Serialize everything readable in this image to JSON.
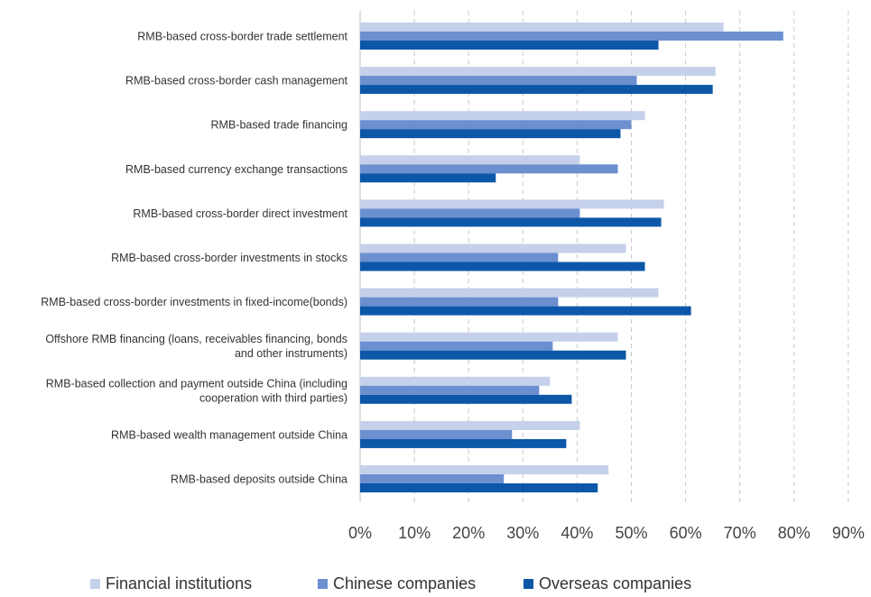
{
  "chart_data": {
    "type": "bar",
    "orientation": "horizontal",
    "categories": [
      "RMB-based cross-border trade settlement",
      "RMB-based cross-border cash management",
      "RMB-based trade financing",
      "RMB-based currency exchange transactions",
      "RMB-based cross-border direct investment",
      "RMB-based cross-border investments in stocks",
      "RMB-based cross-border investments in fixed-income(bonds)",
      "Offshore RMB financing (loans, receivables financing, bonds and other instruments)",
      "RMB-based collection and payment outside China (including cooperation with third parties)",
      "RMB-based wealth management outside China",
      "RMB-based deposits outside China"
    ],
    "category_lines": [
      [
        "RMB-based cross-border trade settlement"
      ],
      [
        "RMB-based cross-border cash management"
      ],
      [
        "RMB-based trade financing"
      ],
      [
        "RMB-based currency exchange transactions"
      ],
      [
        "RMB-based cross-border direct investment"
      ],
      [
        "RMB-based cross-border investments in stocks"
      ],
      [
        "RMB-based cross-border investments in fixed-income(bonds)"
      ],
      [
        "Offshore RMB financing (loans, receivables financing, bonds",
        "and other instruments)"
      ],
      [
        "RMB-based collection and payment outside China (including",
        "cooperation with third parties)"
      ],
      [
        "RMB-based wealth management outside China"
      ],
      [
        "RMB-based deposits outside China"
      ]
    ],
    "series": [
      {
        "name": "Financial institutions",
        "color": "#c5d0ea",
        "values": [
          67,
          65.5,
          52.5,
          40.5,
          56,
          49,
          55,
          47.5,
          35,
          40.5,
          45.8
        ]
      },
      {
        "name": "Chinese companies",
        "color": "#6b8fcf",
        "values": [
          78,
          51,
          50,
          47.5,
          40.5,
          36.5,
          36.5,
          35.5,
          33,
          28,
          26.5
        ]
      },
      {
        "name": "Overseas companies",
        "color": "#0d57a8",
        "values": [
          55,
          65,
          48,
          25,
          55.5,
          52.5,
          61,
          49,
          39,
          38,
          43.8
        ]
      }
    ],
    "x_ticks": [
      "0%",
      "10%",
      "20%",
      "30%",
      "40%",
      "50%",
      "60%",
      "70%",
      "80%",
      "90%"
    ],
    "xlim": [
      0,
      90
    ],
    "grid": "vertical dashed",
    "legend_position": "bottom",
    "title": "",
    "xlabel": "",
    "ylabel": ""
  }
}
